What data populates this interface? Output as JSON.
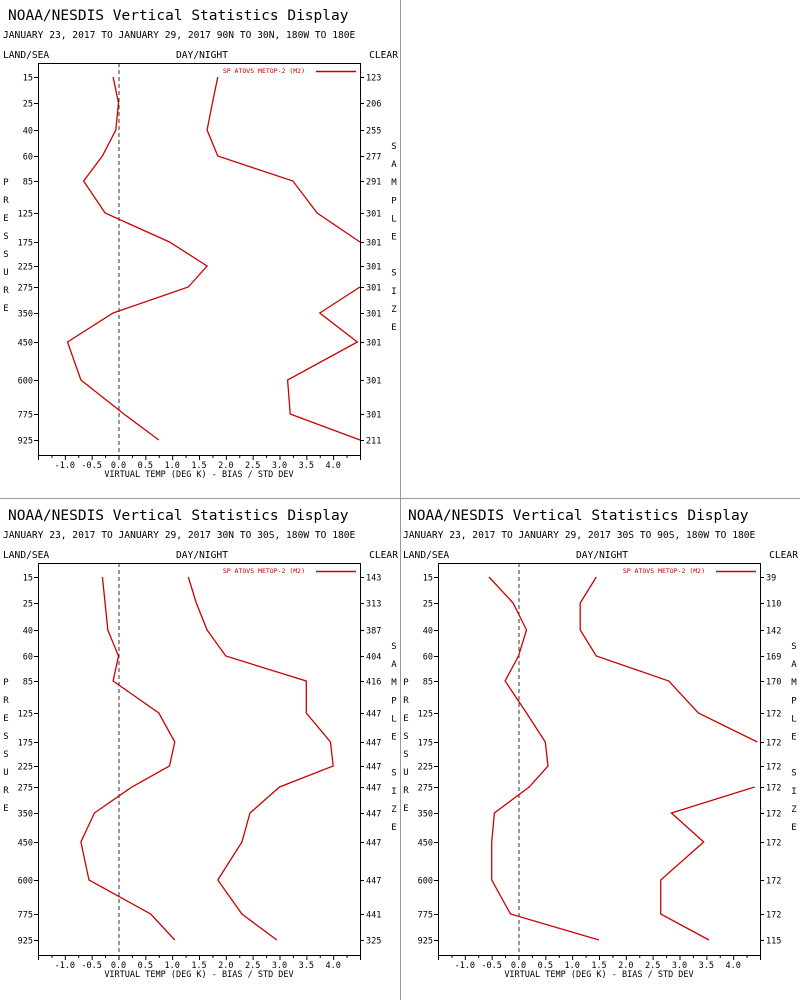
{
  "title": "NOAA/NESDIS Vertical Statistics Display",
  "header_left": "LAND/SEA",
  "header_mid": "DAY/NIGHT",
  "header_right": "CLEAR",
  "xlabel": "VIRTUAL TEMP (DEG K) - BIAS / STD DEV",
  "left_axis_letters": [
    "P",
    "R",
    "E",
    "S",
    "S",
    "U",
    "R",
    "E"
  ],
  "right_axis_letters": [
    "S",
    "A",
    "M",
    "P",
    "L",
    "E",
    "",
    "S",
    "I",
    "Z",
    "E"
  ],
  "colors": {
    "series": "#cc0000",
    "frame": "#000000",
    "zero_line": "#000000",
    "divider": "#999999"
  },
  "chart_data": [
    {
      "type": "line",
      "subtitle": "JANUARY 23, 2017 TO JANUARY 29, 2017  90N TO 30N, 180W TO 180E",
      "legend": "SP ATOVS METOP-2 (M2)",
      "legend_position": "top-right",
      "pressure_levels": [
        15,
        25,
        40,
        60,
        85,
        125,
        175,
        225,
        275,
        350,
        450,
        600,
        775,
        925
      ],
      "sample_size": [
        123,
        206,
        255,
        277,
        291,
        301,
        301,
        301,
        301,
        301,
        301,
        301,
        301,
        211
      ],
      "xlim": [
        -1.5,
        4.5
      ],
      "xticks": [
        "-1.0",
        "-0.5",
        "0.0",
        "0.5",
        "1.0",
        "1.5",
        "2.0",
        "2.5",
        "3.0",
        "3.5",
        "4.0"
      ],
      "series": [
        {
          "name": "bias",
          "values": [
            -0.1,
            0.0,
            -0.05,
            -0.3,
            -0.65,
            -0.25,
            0.95,
            1.65,
            1.3,
            -0.1,
            -0.95,
            -0.7,
            0.1,
            0.75
          ]
        },
        {
          "name": "std dev",
          "values": [
            1.85,
            1.75,
            1.65,
            1.85,
            3.25,
            3.7,
            4.5,
            null,
            null,
            null,
            null,
            null,
            null,
            null
          ]
        },
        {
          "name": "std dev (lower)",
          "values": [
            null,
            null,
            null,
            null,
            null,
            null,
            null,
            null,
            4.5,
            3.75,
            4.45,
            3.15,
            3.2,
            4.5
          ]
        }
      ]
    },
    {
      "type": "line",
      "subtitle": "JANUARY 23, 2017 TO JANUARY 29, 2017  30N TO 30S, 180W TO 180E",
      "legend": "SP ATOVS METOP-2 (M2)",
      "legend_position": "top-right",
      "pressure_levels": [
        15,
        25,
        40,
        60,
        85,
        125,
        175,
        225,
        275,
        350,
        450,
        600,
        775,
        925
      ],
      "sample_size": [
        143,
        313,
        387,
        404,
        416,
        447,
        447,
        447,
        447,
        447,
        447,
        447,
        441,
        325
      ],
      "xlim": [
        -1.5,
        4.5
      ],
      "xticks": [
        "-1.0",
        "-0.5",
        "0.0",
        "0.5",
        "1.0",
        "1.5",
        "2.0",
        "2.5",
        "3.0",
        "3.5",
        "4.0"
      ],
      "series": [
        {
          "name": "bias",
          "values": [
            -0.3,
            -0.25,
            -0.2,
            0.0,
            -0.1,
            0.75,
            1.05,
            0.95,
            0.25,
            -0.45,
            -0.7,
            -0.55,
            0.6,
            1.05
          ]
        },
        {
          "name": "std dev",
          "values": [
            1.3,
            1.45,
            1.65,
            2.0,
            3.5,
            3.5,
            3.95,
            4.0,
            3.0,
            2.45,
            2.3,
            1.85,
            2.3,
            2.95
          ]
        }
      ]
    },
    {
      "type": "line",
      "subtitle": "JANUARY 23, 2017 TO JANUARY 29, 2017  30S TO 90S, 180W TO 180E",
      "legend": "SP ATOVS METOP-2 (M2)",
      "legend_position": "top-right",
      "pressure_levels": [
        15,
        25,
        40,
        60,
        85,
        125,
        175,
        225,
        275,
        350,
        450,
        600,
        775,
        925
      ],
      "sample_size": [
        39,
        110,
        142,
        169,
        170,
        172,
        172,
        172,
        172,
        172,
        172,
        172,
        172,
        115
      ],
      "xlim": [
        -1.5,
        4.5
      ],
      "xticks": [
        "-1.0",
        "-0.5",
        "0.0",
        "0.5",
        "1.0",
        "1.5",
        "2.0",
        "2.5",
        "3.0",
        "3.5",
        "4.0"
      ],
      "series": [
        {
          "name": "bias",
          "values": [
            -0.55,
            -0.1,
            0.15,
            0.0,
            -0.25,
            0.15,
            0.5,
            0.55,
            0.2,
            -0.45,
            -0.5,
            -0.5,
            -0.15,
            1.5
          ]
        },
        {
          "name": "std dev",
          "values": [
            1.45,
            1.15,
            1.15,
            1.45,
            2.8,
            3.35,
            4.45,
            null,
            null,
            null,
            null,
            null,
            null,
            null
          ]
        },
        {
          "name": "std dev (lower)",
          "values": [
            null,
            null,
            null,
            null,
            null,
            null,
            null,
            null,
            4.4,
            2.85,
            3.45,
            2.65,
            2.65,
            3.55
          ]
        }
      ]
    }
  ]
}
